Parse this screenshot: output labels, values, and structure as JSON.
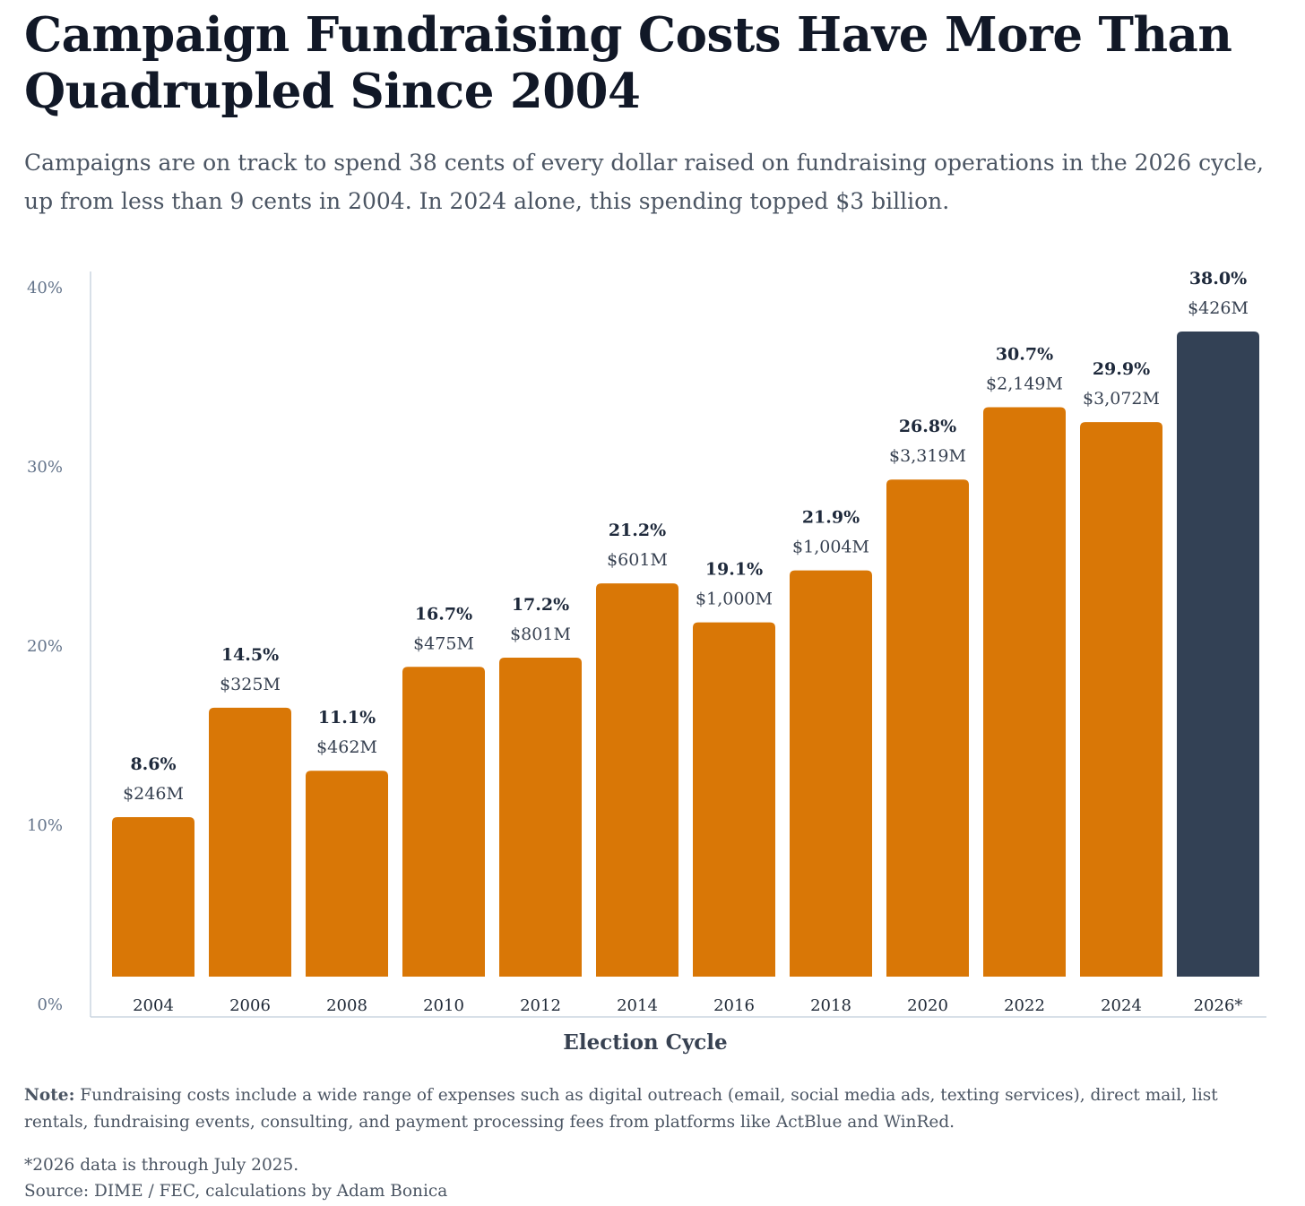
{
  "title": "Campaign Fundraising Costs Have More Than Quadrupled Since 2004",
  "subtitle": "Campaigns are on track to spend 38 cents of every dollar raised on fundraising operations in the 2026 cycle, up from less than 9 cents in 2004. In 2024 alone, this spending topped $3 billion.",
  "chart_data": {
    "type": "bar",
    "title": "Campaign Fundraising Costs Have More Than Quadrupled Since 2004",
    "xlabel": "Election Cycle",
    "ylabel": "",
    "ylim": [
      0,
      40
    ],
    "yticks": [
      "0%",
      "10%",
      "20%",
      "30%",
      "40%"
    ],
    "grid": false,
    "categories": [
      "2004",
      "2006",
      "2008",
      "2010",
      "2012",
      "2014",
      "2016",
      "2018",
      "2020",
      "2022",
      "2024",
      "2026*"
    ],
    "values": [
      8.6,
      14.5,
      11.1,
      16.7,
      17.2,
      21.2,
      19.1,
      21.9,
      26.8,
      30.7,
      29.9,
      38.0
    ],
    "percent_labels": [
      "8.6%",
      "14.5%",
      "11.1%",
      "16.7%",
      "17.2%",
      "21.2%",
      "19.1%",
      "21.9%",
      "26.8%",
      "30.7%",
      "29.9%",
      "38.0%"
    ],
    "dollar_labels": [
      "$246M",
      "$325M",
      "$462M",
      "$475M",
      "$801M",
      "$601M",
      "$1,000M",
      "$1,004M",
      "$3,319M",
      "$2,149M",
      "$3,072M",
      "$426M"
    ],
    "colors": {
      "default": "#d97706",
      "highlight": "#334155"
    },
    "highlight_index": 11
  },
  "note_label": "Note:",
  "note_text": " Fundraising costs include a wide range of expenses such as digital outreach (email, social media ads, texting services), direct mail, list rentals, fundraising events, consulting, and payment processing fees from platforms like ActBlue and WinRed.",
  "footnote": "*2026 data is through July 2025.",
  "source": "Source: DIME / FEC, calculations by Adam Bonica"
}
